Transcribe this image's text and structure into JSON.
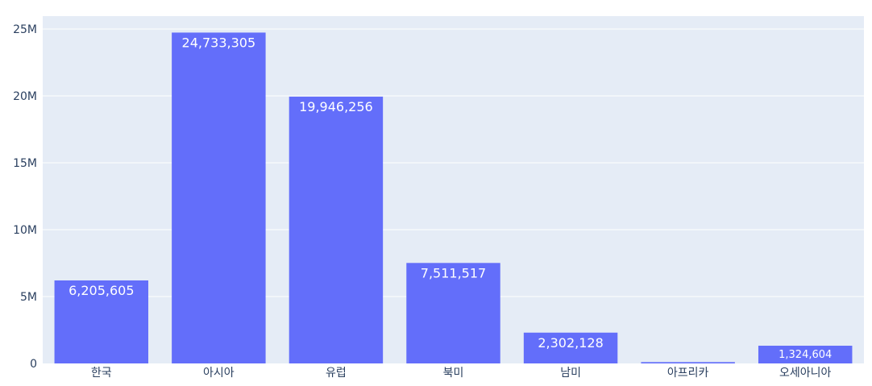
{
  "chart_data": {
    "type": "bar",
    "title": "",
    "xlabel": "",
    "ylabel": "",
    "categories": [
      "한국",
      "아시아",
      "유럽",
      "북미",
      "남미",
      "아프리카",
      "오세아니아"
    ],
    "values": [
      6205605,
      24733305,
      19946256,
      7511517,
      2302128,
      100000,
      1324604
    ],
    "data_labels": [
      "6,205,605",
      "24,733,305",
      "19,946,256",
      "7,511,517",
      "2,302,128",
      "",
      "1,324,604"
    ],
    "ylim": [
      0,
      25000000
    ],
    "y_ticks": [
      0,
      5000000,
      10000000,
      15000000,
      20000000,
      25000000
    ],
    "y_tick_labels": [
      "0",
      "5M",
      "10M",
      "15M",
      "20M",
      "25M"
    ],
    "grid": true,
    "colors": {
      "bar": "#636efa",
      "plot_bg": "#e5ecf6",
      "grid": "#ffffff",
      "text": "#2a3f5f"
    }
  }
}
